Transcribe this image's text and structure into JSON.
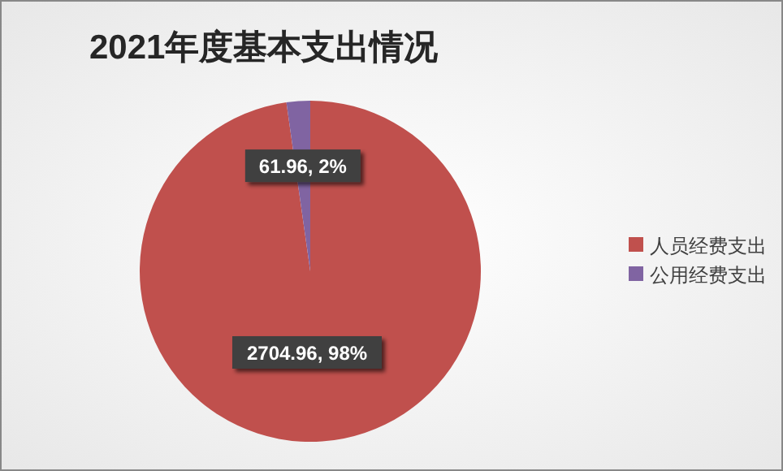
{
  "chart_data": {
    "type": "pie",
    "title": "2021年度基本支出情况",
    "categories": [
      "人员经费支出",
      "公用经费支出"
    ],
    "values": [
      2704.96,
      61.96
    ],
    "colors": [
      "#c0504d",
      "#8064a2"
    ],
    "value_labels": [
      "2704.96, 98%",
      "61.96, 2%"
    ],
    "legend": "right"
  }
}
